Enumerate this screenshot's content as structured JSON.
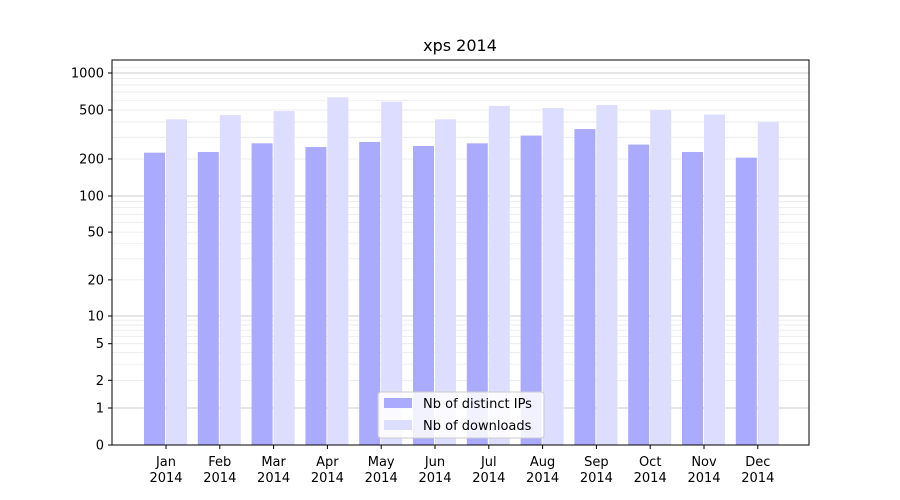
{
  "chart_data": {
    "type": "bar",
    "title": "xps 2014",
    "xlabel": "",
    "ylabel": "",
    "yscale": "symlog",
    "ylim": [
      0,
      1200
    ],
    "y_ticks": [
      0,
      1,
      2,
      5,
      10,
      20,
      50,
      100,
      200,
      500,
      1000
    ],
    "y_tick_labels": [
      "0",
      "1",
      "2",
      "5",
      "10",
      "20",
      "50",
      "100",
      "200",
      "500",
      "1000"
    ],
    "grid": true,
    "legend_position": "bottom-center",
    "categories": [
      [
        "Jan",
        "2014"
      ],
      [
        "Feb",
        "2014"
      ],
      [
        "Mar",
        "2014"
      ],
      [
        "Apr",
        "2014"
      ],
      [
        "May",
        "2014"
      ],
      [
        "Jun",
        "2014"
      ],
      [
        "Jul",
        "2014"
      ],
      [
        "Aug",
        "2014"
      ],
      [
        "Sep",
        "2014"
      ],
      [
        "Oct",
        "2014"
      ],
      [
        "Nov",
        "2014"
      ],
      [
        "Dec",
        "2014"
      ]
    ],
    "series": [
      {
        "name": "Nb of distinct IPs",
        "color": "#aaaaff",
        "values": [
          225,
          228,
          268,
          250,
          275,
          255,
          268,
          310,
          350,
          262,
          228,
          205
        ]
      },
      {
        "name": "Nb of downloads",
        "color": "#ddddff",
        "values": [
          420,
          455,
          490,
          635,
          585,
          420,
          540,
          520,
          550,
          500,
          460,
          400
        ]
      }
    ]
  }
}
